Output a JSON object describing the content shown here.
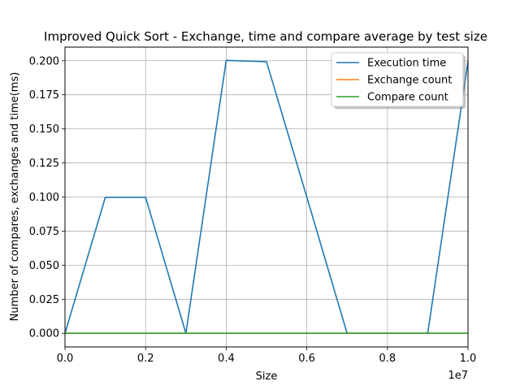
{
  "chart_data": {
    "type": "line",
    "title": "Improved Quick Sort - Exchange, time and compare average by test size",
    "xlabel": "Size",
    "ylabel": "Number of compares, exchanges and time(ms)",
    "x_offset_label": "1e7",
    "xlim": [
      0,
      10000000
    ],
    "ylim": [
      -0.01,
      0.21
    ],
    "grid": true,
    "legend_position": "top-right",
    "x_ticks": [
      0,
      2000000,
      4000000,
      6000000,
      8000000,
      10000000
    ],
    "x_tick_labels": [
      "0.0",
      "0.2",
      "0.4",
      "0.6",
      "0.8",
      "1.0"
    ],
    "y_ticks": [
      0.0,
      0.025,
      0.05,
      0.075,
      0.1,
      0.125,
      0.15,
      0.175,
      0.2
    ],
    "y_tick_labels": [
      "0.000",
      "0.025",
      "0.050",
      "0.075",
      "0.100",
      "0.125",
      "0.150",
      "0.175",
      "0.200"
    ],
    "x": [
      0,
      1000000,
      2000000,
      3000000,
      4000000,
      5000000,
      6000000,
      7000000,
      8000000,
      9000000,
      10000000
    ],
    "series": [
      {
        "name": "Execution time",
        "color": "#1f77b4",
        "values": [
          0.0,
          0.0998,
          0.0998,
          0.0,
          0.2003,
          0.1993,
          0.1,
          0.0,
          0.0,
          0.0,
          0.1995
        ]
      },
      {
        "name": "Exchange count",
        "color": "#ff7f0e",
        "values": [
          0,
          0,
          0,
          0,
          0,
          0,
          0,
          0,
          0,
          0,
          0
        ]
      },
      {
        "name": "Compare count",
        "color": "#2ca02c",
        "values": [
          0,
          0,
          0,
          0,
          0,
          0,
          0,
          0,
          0,
          0,
          0
        ]
      }
    ]
  }
}
